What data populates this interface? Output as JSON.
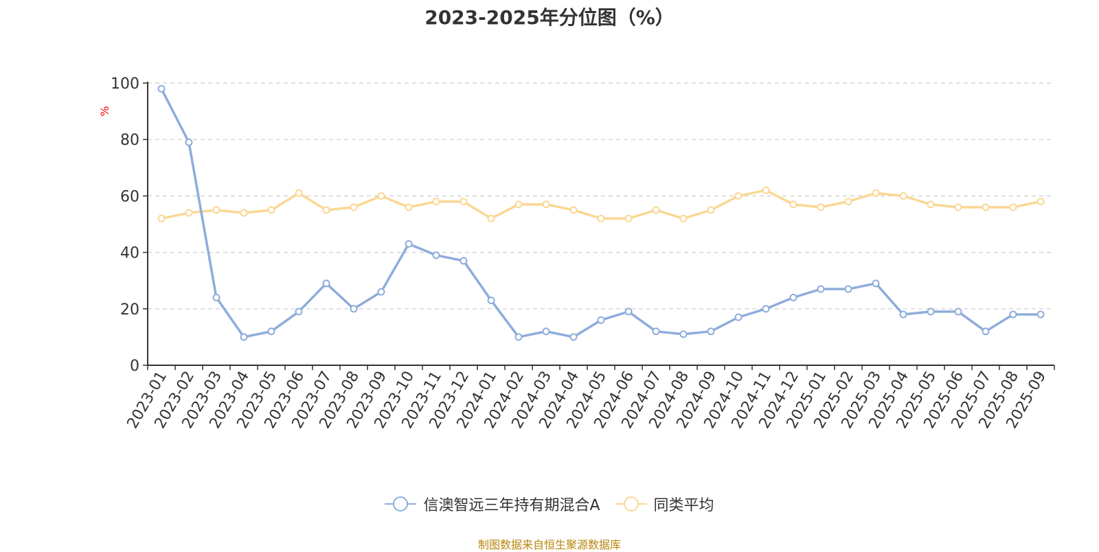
{
  "title": "2023-2025年分位图（%）",
  "source_text": "制图数据来自恒生聚源数据库",
  "colors": {
    "series1": "#8eacdc",
    "series2": "#fad793",
    "axis": "#333333",
    "grid": "#cccccc",
    "unit": "#ff0000"
  },
  "chart_data": {
    "type": "line",
    "title": "2023-2025年分位图（%）",
    "ylabel": "%",
    "ylim": [
      0,
      100
    ],
    "yticks": [
      0,
      20,
      40,
      60,
      80,
      100
    ],
    "grid": true,
    "legend_position": "bottom-center",
    "categories": [
      "2023-01",
      "2023-02",
      "2023-03",
      "2023-04",
      "2023-05",
      "2023-06",
      "2023-07",
      "2023-08",
      "2023-09",
      "2023-10",
      "2023-11",
      "2023-12",
      "2024-01",
      "2024-02",
      "2024-03",
      "2024-04",
      "2024-05",
      "2024-06",
      "2024-07",
      "2024-08",
      "2024-09",
      "2024-10",
      "2024-11",
      "2024-12",
      "2025-01",
      "2025-02",
      "2025-03",
      "2025-04",
      "2025-05",
      "2025-06",
      "2025-07",
      "2025-08",
      "2025-09"
    ],
    "series": [
      {
        "name": "信澳智远三年持有期混合A",
        "values": [
          98,
          79,
          24,
          10,
          12,
          19,
          29,
          20,
          26,
          43,
          39,
          37,
          23,
          10,
          12,
          10,
          16,
          19,
          12,
          11,
          12,
          17,
          20,
          24,
          27,
          27,
          29,
          18,
          19,
          19,
          12,
          18,
          18
        ]
      },
      {
        "name": "同类平均",
        "values": [
          52,
          54,
          55,
          54,
          55,
          61,
          55,
          56,
          60,
          56,
          58,
          58,
          52,
          57,
          57,
          55,
          52,
          52,
          55,
          52,
          55,
          60,
          62,
          57,
          56,
          58,
          61,
          60,
          57,
          56,
          56,
          56,
          58
        ]
      }
    ]
  }
}
